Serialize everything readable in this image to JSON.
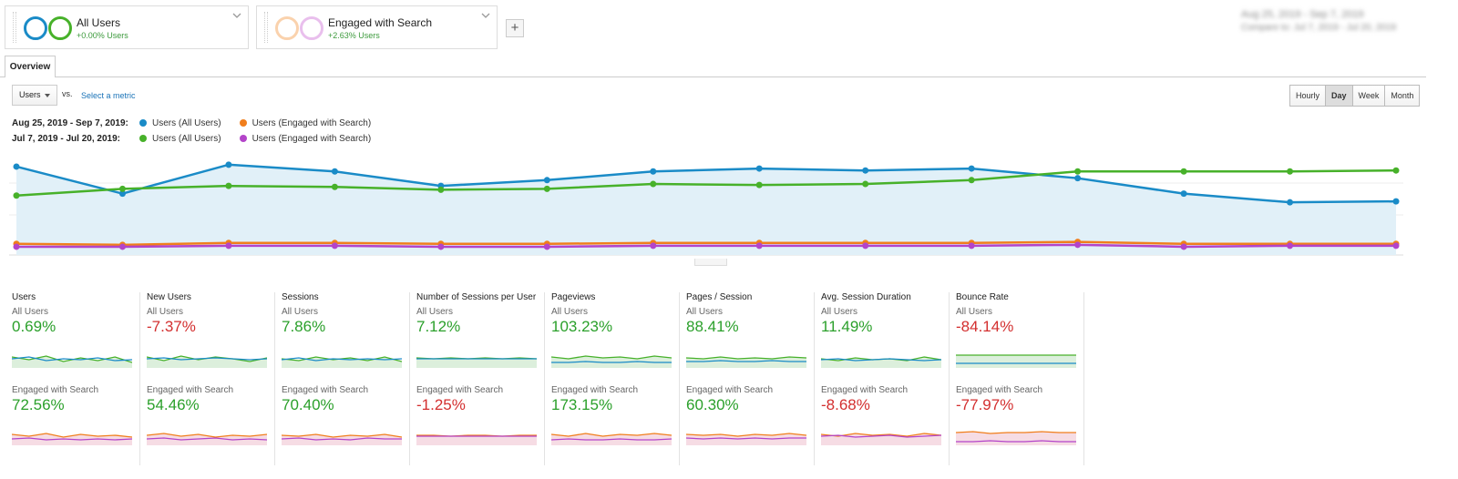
{
  "segments": [
    {
      "title": "All Users",
      "subtitle": "+0.00% Users",
      "colors": [
        "#1a8bc7",
        "#47b12a"
      ]
    },
    {
      "title": "Engaged with Search",
      "subtitle": "+2.63% Users",
      "colors": [
        "#f39c4a",
        "#cf72d8"
      ]
    }
  ],
  "add_segment_label": "+",
  "date_range": {
    "primary": "Aug 25, 2019 - Sep 7, 2019",
    "compare": "Compare to: Jul 7, 2019 - Jul 20, 2019"
  },
  "tab_overview": "Overview",
  "metric_selector": {
    "value": "Users",
    "vs_label": "vs.",
    "select_metric": "Select a metric"
  },
  "granularity": [
    "Hourly",
    "Day",
    "Week",
    "Month"
  ],
  "granularity_active": "Day",
  "legend": [
    {
      "range": "Aug 25, 2019 - Sep 7, 2019:",
      "items": [
        {
          "label": "Users (All Users)",
          "color": "#1a8bc7"
        },
        {
          "label": "Users (Engaged with Search)",
          "color": "#f07e1c"
        }
      ]
    },
    {
      "range": "Jul 7, 2019 - Jul 20, 2019:",
      "items": [
        {
          "label": "Users (All Users)",
          "color": "#47b12a"
        },
        {
          "label": "Users (Engaged with Search)",
          "color": "#b344c9"
        }
      ]
    }
  ],
  "chart_data": {
    "type": "line",
    "x": [
      1,
      2,
      3,
      4,
      5,
      6,
      7,
      8,
      9,
      10,
      11,
      12,
      13,
      14
    ],
    "ylim": [
      0,
      100
    ],
    "series": [
      {
        "name": "Users (All Users)",
        "color": "#1a8bc7",
        "values": [
          84,
          56,
          86,
          79,
          64,
          70,
          79,
          82,
          80,
          82,
          72,
          56,
          47,
          48
        ],
        "fill": true
      },
      {
        "name": "Users (All Users)",
        "color": "#47b12a",
        "values": [
          54,
          61,
          64,
          63,
          60,
          61,
          66,
          65,
          66,
          70,
          79,
          79,
          79,
          80
        ]
      },
      {
        "name": "Users (Engaged with Search)",
        "color": "#f07e1c",
        "values": [
          4,
          3,
          5,
          5,
          4,
          4,
          5,
          5,
          5,
          5,
          6,
          4,
          4,
          4
        ]
      },
      {
        "name": "Users (Engaged with Search)",
        "color": "#b344c9",
        "values": [
          1,
          1,
          2,
          2,
          1,
          1,
          2,
          2,
          2,
          2,
          3,
          1,
          2,
          2
        ]
      }
    ],
    "grid": true
  },
  "scorecards": [
    {
      "metric": "Users",
      "all_label": "All Users",
      "all_pct": "0.69%",
      "all_sign": "pos",
      "all_raw": "",
      "eng_label": "Engaged with Search",
      "eng_pct": "72.56%",
      "eng_sign": "pos",
      "eng_raw": "",
      "spark_all": [
        [
          6,
          9,
          5,
          11,
          7,
          10,
          6,
          12
        ],
        [
          8,
          6,
          10,
          8,
          9,
          7,
          10,
          9
        ]
      ],
      "spark_eng": [
        [
          6,
          8,
          5,
          9,
          6,
          8,
          7,
          9
        ],
        [
          11,
          10,
          12,
          11,
          12,
          11,
          12,
          11
        ]
      ]
    },
    {
      "metric": "New Users",
      "all_label": "All Users",
      "all_pct": "-7.37%",
      "all_sign": "neg",
      "all_raw": "",
      "eng_label": "Engaged with Search",
      "eng_pct": "54.46%",
      "eng_sign": "pos",
      "eng_raw": "",
      "spark_all": [
        [
          6,
          10,
          5,
          9,
          6,
          8,
          11,
          7
        ],
        [
          8,
          7,
          9,
          8,
          7,
          8,
          9,
          8
        ]
      ],
      "spark_eng": [
        [
          7,
          5,
          8,
          6,
          9,
          7,
          8,
          6
        ],
        [
          11,
          10,
          12,
          11,
          10,
          12,
          11,
          12
        ]
      ]
    },
    {
      "metric": "Sessions",
      "all_label": "All Users",
      "all_pct": "7.86%",
      "all_sign": "pos",
      "all_raw": "",
      "eng_label": "Engaged with Search",
      "eng_pct": "70.40%",
      "eng_sign": "pos",
      "eng_raw": "",
      "spark_all": [
        [
          8,
          10,
          6,
          9,
          7,
          10,
          6,
          11
        ],
        [
          9,
          7,
          10,
          8,
          9,
          8,
          9,
          8
        ]
      ],
      "spark_eng": [
        [
          7,
          8,
          6,
          9,
          7,
          8,
          6,
          9
        ],
        [
          11,
          10,
          12,
          11,
          12,
          10,
          11,
          11
        ]
      ]
    },
    {
      "metric": "Number of Sessions per User",
      "all_label": "All Users",
      "all_pct": "7.12%",
      "all_sign": "pos",
      "all_raw": "",
      "eng_label": "Engaged with Search",
      "eng_pct": "-1.25%",
      "eng_sign": "neg",
      "eng_raw": "",
      "spark_all": [
        [
          7,
          8,
          7,
          8,
          7,
          8,
          7,
          8
        ],
        [
          8,
          8,
          8,
          8,
          8,
          8,
          8,
          8
        ]
      ],
      "spark_eng": [
        [
          7,
          7,
          8,
          7,
          7,
          8,
          7,
          7
        ],
        [
          8,
          8,
          8,
          8,
          8,
          8,
          8,
          8
        ]
      ]
    },
    {
      "metric": "Pageviews",
      "all_label": "All Users",
      "all_pct": "103.23%",
      "all_sign": "pos",
      "all_raw": "",
      "eng_label": "Engaged with Search",
      "eng_pct": "173.15%",
      "eng_sign": "pos",
      "eng_raw": "",
      "spark_all": [
        [
          6,
          8,
          5,
          7,
          6,
          8,
          5,
          7
        ],
        [
          12,
          12,
          11,
          12,
          12,
          11,
          12,
          12
        ]
      ],
      "spark_eng": [
        [
          6,
          8,
          5,
          8,
          6,
          7,
          5,
          7
        ],
        [
          12,
          11,
          12,
          12,
          11,
          12,
          12,
          11
        ]
      ]
    },
    {
      "metric": "Pages / Session",
      "all_label": "All Users",
      "all_pct": "88.41%",
      "all_sign": "pos",
      "all_raw": "",
      "eng_label": "Engaged with Search",
      "eng_pct": "60.30%",
      "eng_sign": "pos",
      "eng_raw": "",
      "spark_all": [
        [
          7,
          8,
          6,
          8,
          7,
          8,
          6,
          7
        ],
        [
          11,
          11,
          10,
          11,
          11,
          10,
          11,
          11
        ]
      ],
      "spark_eng": [
        [
          6,
          7,
          6,
          8,
          6,
          7,
          5,
          7
        ],
        [
          10,
          11,
          10,
          11,
          10,
          11,
          10,
          10
        ]
      ]
    },
    {
      "metric": "Avg. Session Duration",
      "all_label": "All Users",
      "all_pct": "11.49%",
      "all_sign": "pos",
      "all_raw": "",
      "eng_label": "Engaged with Search",
      "eng_pct": "-8.68%",
      "eng_sign": "neg",
      "eng_raw": "",
      "spark_all": [
        [
          8,
          10,
          7,
          9,
          8,
          10,
          6,
          9
        ],
        [
          9,
          8,
          10,
          9,
          8,
          9,
          10,
          9
        ]
      ],
      "spark_eng": [
        [
          6,
          8,
          5,
          7,
          6,
          8,
          5,
          7
        ],
        [
          8,
          7,
          9,
          8,
          7,
          9,
          8,
          7
        ]
      ]
    },
    {
      "metric": "Bounce Rate",
      "all_label": "All Users",
      "all_pct": "-84.14%",
      "all_sign": "neg",
      "all_raw": "",
      "eng_label": "Engaged with Search",
      "eng_pct": "-77.97%",
      "eng_sign": "neg",
      "eng_raw": "",
      "spark_all": [
        [
          4,
          4,
          4,
          4,
          4,
          4,
          4,
          4
        ],
        [
          13,
          13,
          13,
          13,
          13,
          13,
          13,
          13
        ]
      ],
      "spark_eng": [
        [
          4,
          3,
          5,
          4,
          4,
          3,
          4,
          4
        ],
        [
          14,
          14,
          13,
          14,
          14,
          13,
          14,
          14
        ]
      ]
    }
  ]
}
